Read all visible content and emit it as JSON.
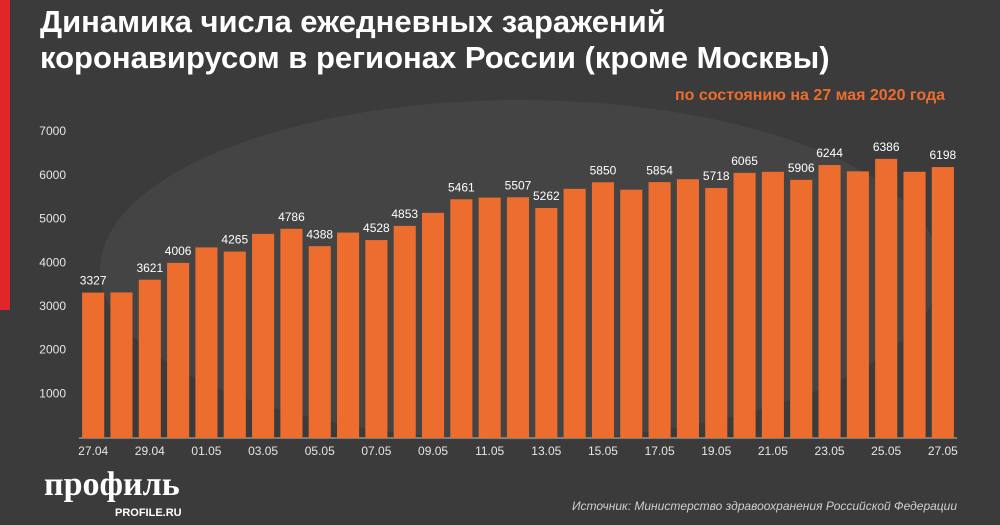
{
  "chart_data": {
    "type": "bar",
    "title": [
      "Динамика числа ежедневных заражений",
      "коронавирусом в регионах России (кроме Москвы)"
    ],
    "subtitle": "по состоянию на 27 мая 2020 года",
    "categories": [
      "27.04",
      null,
      "29.04",
      null,
      "01.05",
      null,
      "03.05",
      null,
      "05.05",
      null,
      "07.05",
      null,
      "09.05",
      null,
      "11.05",
      null,
      "13.05",
      null,
      "15.05",
      null,
      "17.05",
      null,
      "19.05",
      null,
      "21.05",
      null,
      "23.05",
      null,
      "25.05",
      null,
      "27.05"
    ],
    "values": [
      3327,
      3330,
      3621,
      4006,
      4360,
      4265,
      4670,
      4786,
      4388,
      4700,
      4528,
      4853,
      5150,
      5461,
      5500,
      5507,
      5262,
      5700,
      5850,
      5680,
      5854,
      5920,
      5718,
      6065,
      6090,
      5906,
      6244,
      6100,
      6386,
      6090,
      6198
    ],
    "value_labels": [
      "3327",
      null,
      "3621",
      "4006",
      null,
      "4265",
      null,
      "4786",
      "4388",
      null,
      "4528",
      "4853",
      null,
      "5461",
      null,
      "5507",
      "5262",
      null,
      "5850",
      null,
      "5854",
      null,
      "5718",
      "6065",
      null,
      "5906",
      "6244",
      null,
      "6386",
      null,
      "6198"
    ],
    "color": "#ed6d2f",
    "ylim": [
      0,
      7000
    ],
    "yticks": [
      1000,
      2000,
      3000,
      4000,
      5000,
      6000,
      7000
    ],
    "grid": false,
    "source": "Источник: Министерство здравоохранения Российской Федерации"
  },
  "brand": {
    "logo": "профиль",
    "site": "PROFILE.RU"
  }
}
